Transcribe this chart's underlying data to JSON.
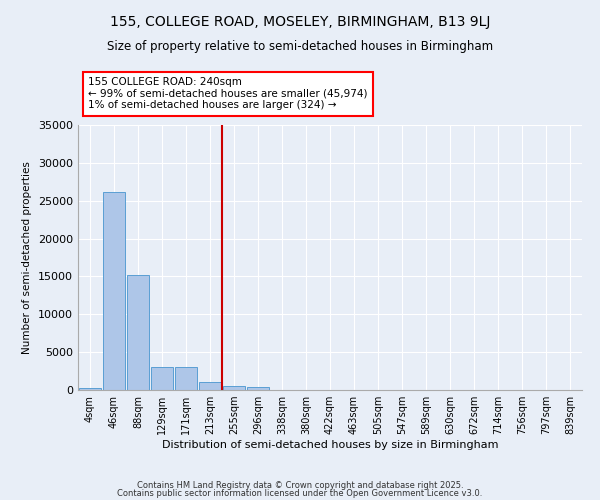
{
  "title": "155, COLLEGE ROAD, MOSELEY, BIRMINGHAM, B13 9LJ",
  "subtitle": "Size of property relative to semi-detached houses in Birmingham",
  "xlabel": "Distribution of semi-detached houses by size in Birmingham",
  "ylabel": "Number of semi-detached properties",
  "bar_color": "#aec6e8",
  "bar_edge_color": "#5a9fd4",
  "background_color": "#e8eef7",
  "grid_color": "#ffffff",
  "categories": [
    "4sqm",
    "46sqm",
    "88sqm",
    "129sqm",
    "171sqm",
    "213sqm",
    "255sqm",
    "296sqm",
    "338sqm",
    "380sqm",
    "422sqm",
    "463sqm",
    "505sqm",
    "547sqm",
    "589sqm",
    "630sqm",
    "672sqm",
    "714sqm",
    "756sqm",
    "797sqm",
    "839sqm"
  ],
  "values": [
    300,
    26100,
    15200,
    3050,
    3050,
    1100,
    500,
    400,
    50,
    30,
    20,
    15,
    10,
    8,
    5,
    3,
    2,
    2,
    1,
    1,
    1
  ],
  "red_line_index": 6,
  "annotation_line1": "155 COLLEGE ROAD: 240sqm",
  "annotation_line2": "← 99% of semi-detached houses are smaller (45,974)",
  "annotation_line3": "1% of semi-detached houses are larger (324) →",
  "red_line_color": "#cc0000",
  "ylim": [
    0,
    35000
  ],
  "yticks": [
    0,
    5000,
    10000,
    15000,
    20000,
    25000,
    30000,
    35000
  ],
  "footer_line1": "Contains HM Land Registry data © Crown copyright and database right 2025.",
  "footer_line2": "Contains public sector information licensed under the Open Government Licence v3.0."
}
